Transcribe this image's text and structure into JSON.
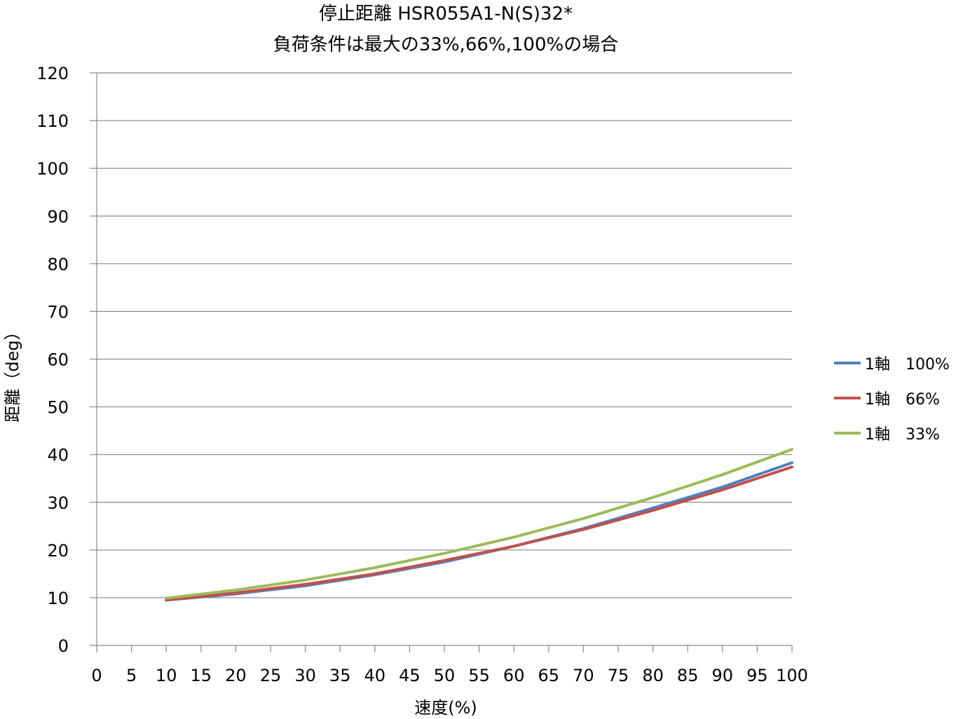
{
  "chart_data": {
    "type": "line",
    "title": "停止距離 HSR055A1-N(S)32*",
    "subtitle": "負荷条件は最大の33%,66%,100%の場合",
    "xlabel": "速度(%)",
    "ylabel": "距離（deg）",
    "xlim": [
      0,
      100
    ],
    "ylim": [
      0,
      120
    ],
    "x_ticks": [
      "0",
      "5",
      "10",
      "15",
      "20",
      "25",
      "30",
      "35",
      "40",
      "45",
      "50",
      "55",
      "60",
      "65",
      "70",
      "75",
      "80",
      "85",
      "90",
      "95",
      "100"
    ],
    "y_ticks": [
      "0",
      "10",
      "20",
      "30",
      "40",
      "50",
      "60",
      "70",
      "80",
      "90",
      "100",
      "110",
      "120"
    ],
    "grid": "horizontal",
    "legend_position": "right",
    "x": [
      10,
      20,
      30,
      40,
      50,
      60,
      70,
      80,
      90,
      100
    ],
    "series": [
      {
        "name": "1軸　100%",
        "color": "#4f81bd",
        "values": [
          9.5,
          10.8,
          12.5,
          14.8,
          17.5,
          20.8,
          24.5,
          28.8,
          33.2,
          38.3
        ]
      },
      {
        "name": "1軸　66%",
        "color": "#c0504d",
        "values": [
          9.5,
          11.0,
          12.8,
          15.0,
          17.8,
          20.8,
          24.3,
          28.3,
          32.6,
          37.4
        ]
      },
      {
        "name": "1軸　33%",
        "color": "#9bbb59",
        "values": [
          9.9,
          11.6,
          13.7,
          16.3,
          19.3,
          22.7,
          26.6,
          31.0,
          35.8,
          41.1
        ]
      }
    ]
  }
}
